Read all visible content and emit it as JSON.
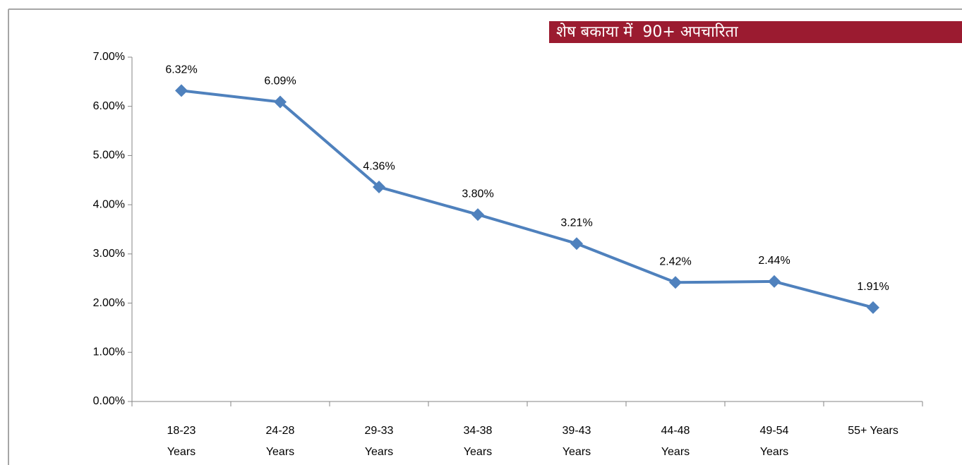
{
  "chart_data": {
    "type": "line",
    "title": "शेष बकाया में  90+ अपचारिता",
    "categories": [
      "18-23 Years",
      "24-28 Years",
      "29-33 Years",
      "34-38 Years",
      "39-43 Years",
      "44-48 Years",
      "49-54 Years",
      "55+ Years"
    ],
    "values": [
      6.32,
      6.09,
      4.36,
      3.8,
      3.21,
      2.42,
      2.44,
      1.91
    ],
    "value_labels": [
      "6.32%",
      "6.09%",
      "4.36%",
      "3.80%",
      "3.21%",
      "2.42%",
      "2.44%",
      "1.91%"
    ],
    "color": "#4f81bd",
    "ylim": [
      0,
      7
    ],
    "yticks": [
      {
        "value": 0,
        "label": "0.00%"
      },
      {
        "value": 1,
        "label": "1.00%"
      },
      {
        "value": 2,
        "label": "2.00%"
      },
      {
        "value": 3,
        "label": "3.00%"
      },
      {
        "value": 4,
        "label": "4.00%"
      },
      {
        "value": 5,
        "label": "5.00%"
      },
      {
        "value": 6,
        "label": "6.00%"
      },
      {
        "value": 7,
        "label": "7.00%"
      }
    ],
    "grid": false
  }
}
